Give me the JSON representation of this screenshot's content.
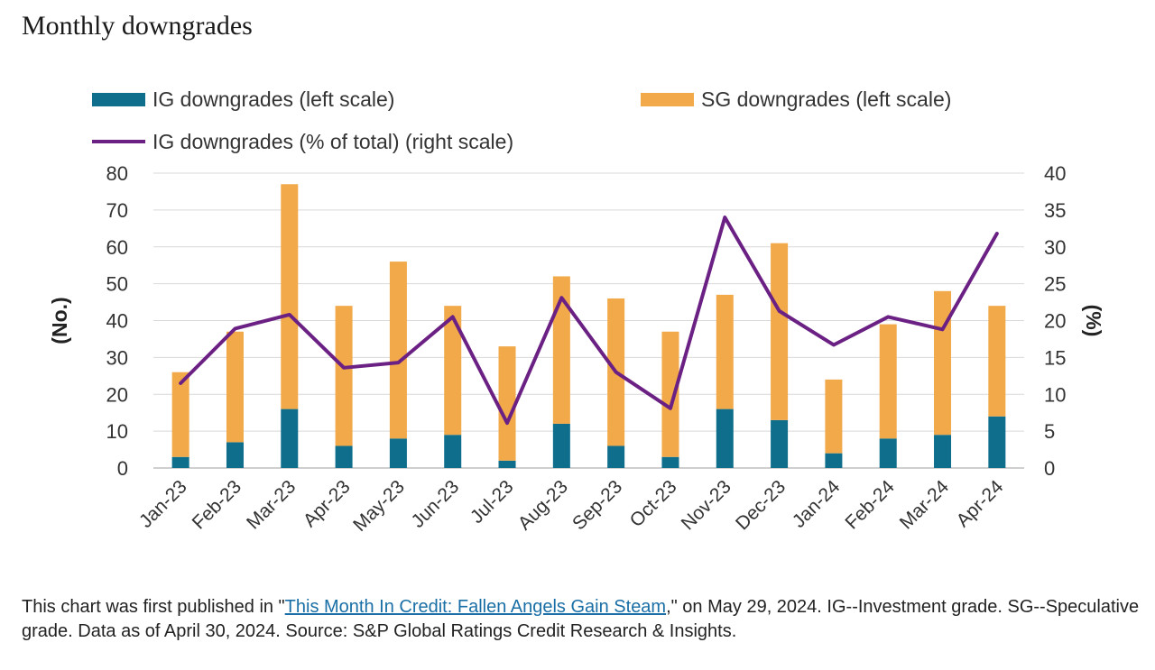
{
  "page": {
    "title": "Monthly downgrades",
    "note_before": "This chart was first published in \"",
    "note_link": "This Month In Credit: Fallen Angels Gain Steam",
    "note_after": ",\" on May 29, 2024. IG--Investment grade. SG--Speculative grade. Data as of April 30, 2024. Source: S&P Global Ratings Credit Research & Insights."
  },
  "colors": {
    "ig": "#0e6e8c",
    "sg": "#f1a94a",
    "line": "#6b2084",
    "grid": "#d9d9d9"
  },
  "chart_data": {
    "type": "bar",
    "stacked": true,
    "categories": [
      "Jan-23",
      "Feb-23",
      "Mar-23",
      "Apr-23",
      "May-23",
      "Jun-23",
      "Jul-23",
      "Aug-23",
      "Sep-23",
      "Oct-23",
      "Nov-23",
      "Dec-23",
      "Jan-24",
      "Feb-24",
      "Mar-24",
      "Apr-24"
    ],
    "series": [
      {
        "name": "IG downgrades (left scale)",
        "type": "bar",
        "axis": "left",
        "values": [
          3,
          7,
          16,
          6,
          8,
          9,
          2,
          12,
          6,
          3,
          16,
          13,
          4,
          8,
          9,
          14
        ]
      },
      {
        "name": "SG downgrades (left scale)",
        "type": "bar",
        "axis": "left",
        "values": [
          23,
          30,
          61,
          38,
          48,
          35,
          31,
          40,
          40,
          34,
          31,
          48,
          20,
          31,
          39,
          30
        ]
      },
      {
        "name": "IG downgrades (% of total) (right scale)",
        "type": "line",
        "axis": "right",
        "values": [
          11.5,
          18.9,
          20.8,
          13.6,
          14.3,
          20.5,
          6.1,
          23.1,
          13.0,
          8.1,
          34.0,
          21.3,
          16.7,
          20.5,
          18.8,
          31.8
        ]
      }
    ],
    "ylabel": "(No.)",
    "y2label": "(%)",
    "ylim": [
      0,
      80
    ],
    "y2lim": [
      0,
      40
    ],
    "yticks": [
      "0",
      "10",
      "20",
      "30",
      "40",
      "50",
      "60",
      "70",
      "80"
    ],
    "y2ticks": [
      "0",
      "5",
      "10",
      "15",
      "20",
      "25",
      "30",
      "35",
      "40"
    ],
    "grid": true,
    "legend_position": "top"
  }
}
